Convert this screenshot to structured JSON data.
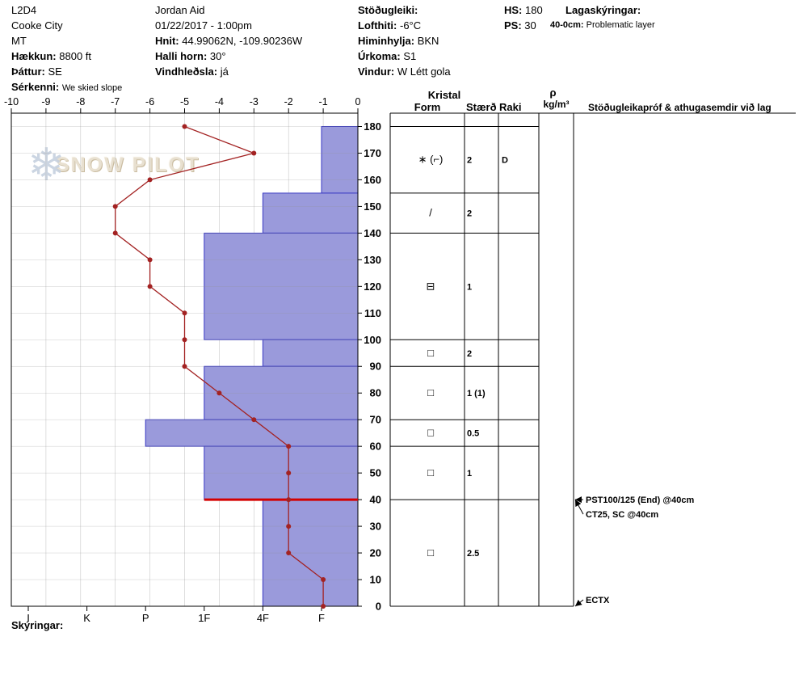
{
  "header": {
    "pit_id": "L2D4",
    "location": "Cooke City",
    "state": "MT",
    "elevation_label": "Hækkun:",
    "elevation_value": "8800 ft",
    "aspect_label": "Þáttur:",
    "aspect_value": "SE",
    "special_label": "Sérkenni:",
    "special_value": "We skied slope",
    "observer": "Jordan Aid",
    "datetime": "01/22/2017 - 1:00pm",
    "coords_label": "Hnit:",
    "coords_value": "44.99062N, -109.90236W",
    "slope_label": "Halli horn:",
    "slope_value": "30°",
    "windload_label": "Vindhleðsla:",
    "windload_value": "já",
    "stability_label": "Stöðugleiki:",
    "airtemp_label": "Lofthiti:",
    "airtemp_value": "-6°C",
    "sky_label": "Himinhylja:",
    "sky_value": "BKN",
    "precip_label": "Úrkoma:",
    "precip_value": "S1",
    "wind_label": "Vindur:",
    "wind_value": "W Létt gola",
    "hs_label": "HS:",
    "hs_value": "180",
    "ps_label": "PS:",
    "ps_value": "30",
    "layer_notes_label": "Lagaskýringar:",
    "layer_note_range": "40-0cm:",
    "layer_note_text": "Problematic layer"
  },
  "watermark": {
    "snowflake_icon": "❄",
    "text": "SNOW PILOT"
  },
  "footer": {
    "notes_label": "Skýringar:"
  },
  "table": {
    "kristal_header": "Kristal",
    "form_header": "Form",
    "size_header": "Stærð",
    "wetness_header": "Raki",
    "density_symbol": "ρ",
    "density_unit": "kg/m³",
    "tests_header": "Stöðugleikapróf & athugasemdir við lag"
  },
  "chart_data": {
    "type": "snow-profile",
    "depth_unit": "cm",
    "depth_max": 185,
    "depth_ticks": [
      180,
      170,
      160,
      150,
      140,
      130,
      120,
      110,
      100,
      90,
      80,
      70,
      60,
      50,
      40,
      30,
      20,
      10,
      0
    ],
    "temp_ticks": [
      -10,
      -9,
      -8,
      -7,
      -6,
      -5,
      -4,
      -3,
      -2,
      -1,
      0
    ],
    "hardness_ticks": [
      "I",
      "K",
      "P",
      "1F",
      "4F",
      "F"
    ],
    "layers": [
      {
        "top_cm": 180,
        "bottom_cm": 155,
        "hardness": "F",
        "grain_form": "∗ (⌐)",
        "grain_size_mm": "2",
        "wetness": "D"
      },
      {
        "top_cm": 155,
        "bottom_cm": 140,
        "hardness": "4F",
        "grain_form": "/",
        "grain_size_mm": "2",
        "wetness": ""
      },
      {
        "top_cm": 140,
        "bottom_cm": 100,
        "hardness": "1F",
        "grain_form": "⊟",
        "grain_size_mm": "1",
        "wetness": ""
      },
      {
        "top_cm": 100,
        "bottom_cm": 90,
        "hardness": "4F",
        "grain_form": "□",
        "grain_size_mm": "2",
        "wetness": ""
      },
      {
        "top_cm": 90,
        "bottom_cm": 70,
        "hardness": "1F",
        "grain_form": "□",
        "grain_size_mm": "1 (1)",
        "wetness": ""
      },
      {
        "top_cm": 70,
        "bottom_cm": 60,
        "hardness": "P",
        "grain_form": "□",
        "grain_size_mm": "0.5",
        "wetness": ""
      },
      {
        "top_cm": 60,
        "bottom_cm": 40,
        "hardness": "1F",
        "grain_form": "□",
        "grain_size_mm": "1",
        "wetness": ""
      },
      {
        "top_cm": 40,
        "bottom_cm": 0,
        "hardness": "4F",
        "grain_form": "□",
        "grain_size_mm": "2.5",
        "wetness": ""
      }
    ],
    "temperature_profile_c": [
      {
        "depth_cm": 180,
        "temp_c": -5
      },
      {
        "depth_cm": 170,
        "temp_c": -3
      },
      {
        "depth_cm": 160,
        "temp_c": -6
      },
      {
        "depth_cm": 150,
        "temp_c": -7
      },
      {
        "depth_cm": 140,
        "temp_c": -7
      },
      {
        "depth_cm": 130,
        "temp_c": -6
      },
      {
        "depth_cm": 120,
        "temp_c": -6
      },
      {
        "depth_cm": 110,
        "temp_c": -5
      },
      {
        "depth_cm": 100,
        "temp_c": -5
      },
      {
        "depth_cm": 90,
        "temp_c": -5
      },
      {
        "depth_cm": 80,
        "temp_c": -4
      },
      {
        "depth_cm": 70,
        "temp_c": -3
      },
      {
        "depth_cm": 60,
        "temp_c": -2
      },
      {
        "depth_cm": 50,
        "temp_c": -2
      },
      {
        "depth_cm": 40,
        "temp_c": -2
      },
      {
        "depth_cm": 30,
        "temp_c": -2
      },
      {
        "depth_cm": 20,
        "temp_c": -2
      },
      {
        "depth_cm": 10,
        "temp_c": -1
      },
      {
        "depth_cm": 0,
        "temp_c": -1
      }
    ],
    "flagged_layer_depth_cm": 40,
    "stability_tests": [
      {
        "label": "PST100/125 (End) @40cm",
        "depth_cm": 40
      },
      {
        "label": "CT25, SC @40cm",
        "depth_cm": 40
      },
      {
        "label": "ECTX",
        "depth_cm": 0
      }
    ],
    "colors": {
      "bar_fill": "#9a9adb",
      "bar_border": "#3838c4",
      "temp_line": "#a32222",
      "flag_line": "#d40000",
      "grid": "#c8c8c8"
    }
  }
}
